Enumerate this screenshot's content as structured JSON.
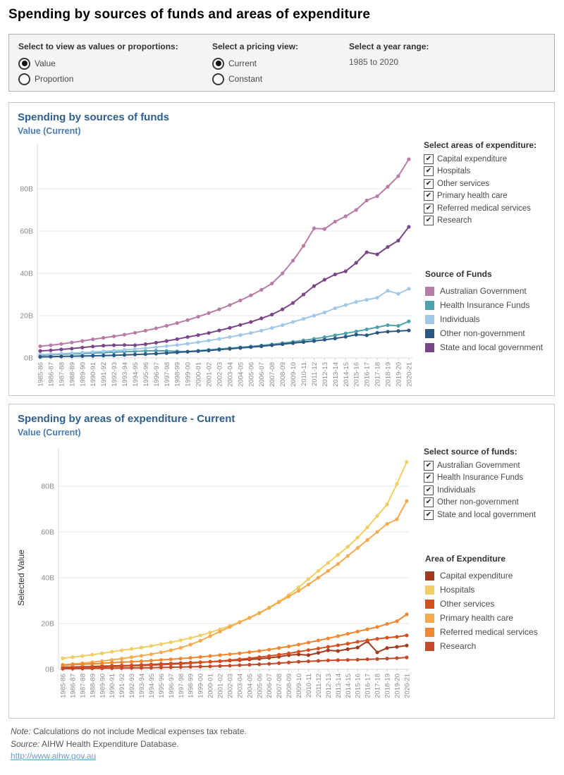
{
  "page": {
    "title": "Spending by sources of funds and areas of expenditure"
  },
  "controls": {
    "view_as": {
      "label": "Select to view as values or proportions:",
      "options": [
        {
          "label": "Value",
          "selected": true
        },
        {
          "label": "Proportion",
          "selected": false
        }
      ]
    },
    "pricing": {
      "label": "Select a pricing view:",
      "options": [
        {
          "label": "Current",
          "selected": true
        },
        {
          "label": "Constant",
          "selected": false
        }
      ]
    },
    "year_range": {
      "label": "Select a year range:",
      "value": "1985 to 2020"
    }
  },
  "panel1": {
    "title": "Spending by sources of funds",
    "subtitle": "Value (Current)",
    "filter": {
      "label": "Select areas of expenditure:",
      "items": [
        "Capital expenditure",
        "Hospitals",
        "Other services",
        "Primary health care",
        "Referred medical services",
        "Research"
      ],
      "checked": [
        true,
        true,
        true,
        true,
        true,
        true
      ]
    },
    "legend_title": "Source of Funds"
  },
  "panel2": {
    "title": "Spending by areas of expenditure - Current",
    "subtitle": "Value (Current)",
    "filter": {
      "label": "Select source of funds:",
      "items": [
        "Australian Government",
        "Health Insurance Funds",
        "Individuals",
        "Other non-government",
        "State and local government"
      ],
      "checked": [
        true,
        true,
        true,
        true,
        true
      ]
    },
    "legend_title": "Area of Expenditure",
    "y_axis_title": "Selected Value"
  },
  "footer": {
    "note_label": "Note:",
    "note": " Calculations do not include Medical expenses tax rebate.",
    "source_label": "Source:",
    "source": " AIHW Health Expenditure Database.",
    "link": "http://www.aihw.gov.au"
  },
  "chart_data": [
    {
      "type": "line",
      "title": "Spending by sources of funds",
      "subtitle": "Value (Current)",
      "xlabel": "",
      "ylabel": "",
      "ylim": [
        0,
        100
      ],
      "yticks": [
        0,
        20,
        40,
        60,
        80
      ],
      "ytick_suffix": "B",
      "grid": true,
      "legend_position": "right",
      "x": [
        "1985-86",
        "1986-87",
        "1987-88",
        "1988-89",
        "1989-90",
        "1990-91",
        "1991-92",
        "1992-93",
        "1993-94",
        "1994-95",
        "1995-96",
        "1996-97",
        "1997-98",
        "1998-99",
        "1999-00",
        "2000-01",
        "2001-02",
        "2002-03",
        "2003-04",
        "2004-05",
        "2005-06",
        "2006-07",
        "2007-08",
        "2008-09",
        "2009-10",
        "2010-11",
        "2011-12",
        "2012-13",
        "2013-14",
        "2014-15",
        "2015-16",
        "2016-17",
        "2017-18",
        "2018-19",
        "2019-20",
        "2020-21"
      ],
      "series": [
        {
          "name": "Australian Government",
          "color": "#b87da6",
          "values": [
            5.5,
            6.0,
            6.6,
            7.3,
            8.0,
            8.8,
            9.5,
            10.2,
            11.0,
            11.9,
            12.9,
            14.0,
            15.2,
            16.5,
            17.9,
            19.5,
            21.2,
            23.0,
            25.0,
            27.2,
            29.6,
            32.2,
            35.2,
            40.0,
            46.0,
            53.0,
            61.3,
            61.0,
            64.5,
            67.0,
            70.0,
            74.5,
            76.5,
            81.0,
            86.0,
            94.0
          ]
        },
        {
          "name": "Health Insurance Funds",
          "color": "#4ea2ae",
          "values": [
            1.3,
            1.5,
            1.7,
            1.9,
            2.1,
            2.3,
            2.5,
            2.7,
            2.9,
            3.1,
            3.3,
            3.4,
            3.3,
            3.1,
            3.0,
            3.4,
            3.8,
            4.2,
            4.6,
            5.0,
            5.4,
            5.9,
            6.4,
            7.0,
            7.6,
            8.3,
            9.0,
            9.8,
            10.7,
            11.6,
            12.5,
            13.5,
            14.5,
            15.5,
            15.2,
            17.3
          ]
        },
        {
          "name": "Individuals",
          "color": "#a2c8e8",
          "values": [
            1.6,
            1.8,
            2.0,
            2.3,
            2.5,
            2.8,
            3.1,
            3.4,
            3.8,
            4.2,
            4.6,
            5.1,
            5.6,
            6.1,
            6.7,
            7.4,
            8.2,
            9.0,
            9.9,
            10.8,
            11.8,
            12.9,
            14.2,
            15.5,
            17.0,
            18.5,
            20.0,
            21.5,
            23.5,
            25.0,
            26.5,
            27.5,
            28.5,
            31.8,
            30.3,
            32.7
          ]
        },
        {
          "name": "Other non-government",
          "color": "#2a5783",
          "values": [
            0.5,
            0.6,
            0.7,
            0.8,
            0.9,
            1.0,
            1.1,
            1.2,
            1.4,
            1.6,
            1.8,
            2.0,
            2.3,
            2.6,
            2.9,
            3.2,
            3.5,
            3.9,
            4.3,
            4.7,
            5.1,
            5.5,
            6.0,
            6.5,
            7.0,
            7.5,
            8.0,
            8.6,
            9.2,
            10.0,
            11.0,
            10.7,
            11.9,
            12.4,
            12.7,
            13.0
          ]
        },
        {
          "name": "State and local government",
          "color": "#7b4687",
          "values": [
            3.3,
            3.6,
            4.0,
            4.4,
            4.9,
            5.4,
            5.8,
            6.0,
            6.1,
            6.0,
            6.5,
            7.2,
            8.0,
            8.9,
            9.9,
            10.8,
            11.8,
            13.0,
            14.2,
            15.6,
            17.0,
            18.7,
            20.5,
            23.0,
            26.0,
            30.0,
            34.0,
            37.0,
            39.5,
            41.0,
            45.0,
            50.0,
            49.0,
            52.5,
            55.5,
            62.0
          ]
        }
      ]
    },
    {
      "type": "line",
      "title": "Spending by areas of expenditure - Current",
      "subtitle": "Value (Current)",
      "xlabel": "",
      "ylabel": "Selected Value",
      "ylim": [
        0,
        96
      ],
      "yticks": [
        0,
        20,
        40,
        60,
        80
      ],
      "ytick_suffix": "B",
      "grid": true,
      "legend_position": "right",
      "x": [
        "1985-86",
        "1986-87",
        "1987-88",
        "1988-89",
        "1989-90",
        "1990-91",
        "1991-92",
        "1992-93",
        "1993-94",
        "1994-95",
        "1995-96",
        "1996-97",
        "1997-98",
        "1998-99",
        "1999-00",
        "2000-01",
        "2001-02",
        "2002-03",
        "2003-04",
        "2004-05",
        "2005-06",
        "2006-07",
        "2007-08",
        "2008-09",
        "2009-10",
        "2010-11",
        "2011-12",
        "2012-13",
        "2013-14",
        "2014-15",
        "2015-16",
        "2016-17",
        "2017-18",
        "2018-19",
        "2019-20",
        "2020-21"
      ],
      "series": [
        {
          "name": "Capital expenditure",
          "color": "#a23a21",
          "values": [
            0.9,
            1.0,
            1.1,
            1.2,
            1.4,
            1.5,
            1.6,
            1.7,
            1.9,
            2.1,
            2.3,
            2.5,
            2.7,
            2.9,
            3.1,
            3.3,
            3.5,
            3.8,
            4.0,
            4.3,
            4.6,
            5.0,
            5.5,
            6.2,
            6.5,
            6.2,
            7.2,
            8.3,
            8.0,
            8.8,
            9.5,
            12.2,
            7.4,
            9.3,
            9.8,
            10.4
          ]
        },
        {
          "name": "Hospitals",
          "color": "#f1ce63",
          "values": [
            4.8,
            5.3,
            5.8,
            6.4,
            7.0,
            7.7,
            8.3,
            8.9,
            9.5,
            10.2,
            11.0,
            11.8,
            12.7,
            13.7,
            14.8,
            16.1,
            17.5,
            19.0,
            20.7,
            22.6,
            24.7,
            27.0,
            29.6,
            32.5,
            35.8,
            39.4,
            43.0,
            46.5,
            50.0,
            53.5,
            57.5,
            62.0,
            67.0,
            72.0,
            81.0,
            90.5
          ]
        },
        {
          "name": "Other services",
          "color": "#d5501f",
          "values": [
            0.6,
            0.7,
            0.8,
            0.9,
            1.0,
            1.2,
            1.3,
            1.5,
            1.6,
            1.8,
            2.0,
            2.2,
            2.4,
            2.7,
            3.0,
            3.3,
            3.6,
            4.0,
            4.4,
            4.8,
            5.3,
            5.8,
            6.4,
            7.0,
            7.7,
            8.4,
            9.1,
            9.8,
            10.5,
            11.2,
            12.0,
            12.7,
            13.3,
            13.8,
            14.2,
            14.8
          ]
        },
        {
          "name": "Primary health care",
          "color": "#f5aa50",
          "values": [
            2.0,
            2.3,
            2.7,
            3.1,
            3.6,
            4.1,
            4.7,
            5.3,
            5.9,
            6.6,
            7.4,
            8.3,
            9.4,
            10.8,
            12.5,
            14.5,
            16.5,
            18.5,
            20.5,
            22.4,
            24.5,
            26.8,
            29.3,
            31.8,
            34.3,
            37.0,
            40.0,
            43.0,
            46.0,
            49.5,
            53.0,
            56.5,
            60.0,
            63.5,
            65.5,
            73.5
          ]
        },
        {
          "name": "Referred medical services",
          "color": "#ef8832",
          "values": [
            1.8,
            2.0,
            2.2,
            2.4,
            2.6,
            2.9,
            3.1,
            3.3,
            3.5,
            3.8,
            4.1,
            4.4,
            4.7,
            5.0,
            5.4,
            5.8,
            6.2,
            6.6,
            7.0,
            7.5,
            8.0,
            8.6,
            9.3,
            10.0,
            10.8,
            11.7,
            12.6,
            13.5,
            14.5,
            15.5,
            16.5,
            17.5,
            18.5,
            19.8,
            21.0,
            24.0
          ]
        },
        {
          "name": "Research",
          "color": "#c3492a",
          "values": [
            0.25,
            0.3,
            0.35,
            0.4,
            0.45,
            0.5,
            0.55,
            0.6,
            0.65,
            0.7,
            0.8,
            0.9,
            1.0,
            1.1,
            1.2,
            1.3,
            1.45,
            1.6,
            1.8,
            2.0,
            2.2,
            2.4,
            2.7,
            3.0,
            3.3,
            3.5,
            3.7,
            3.9,
            4.0,
            4.1,
            4.2,
            4.4,
            4.5,
            4.7,
            4.9,
            5.2
          ]
        }
      ]
    }
  ]
}
